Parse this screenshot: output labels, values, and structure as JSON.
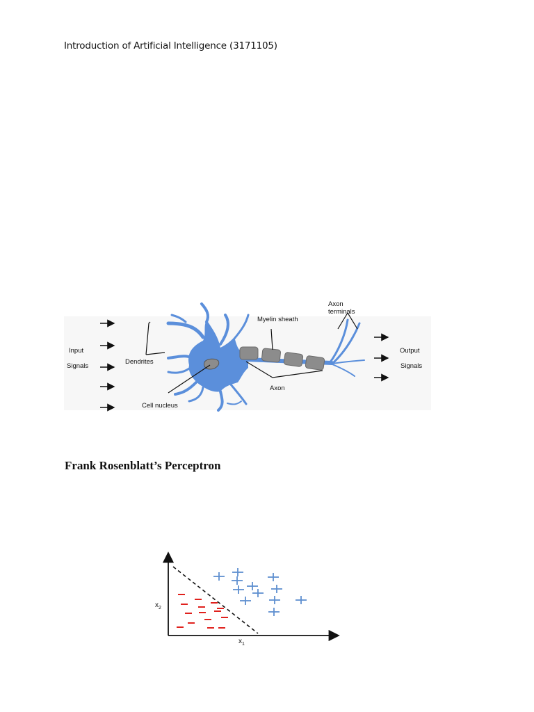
{
  "header": {
    "text": "Introduction of Artificial Intelligence (3171105)"
  },
  "neuron_diagram": {
    "labels": {
      "input": "Input",
      "input_signals": "Signals",
      "dendrites": "Dendrites",
      "cell_nucleus": "Cell nucleus",
      "myelin_sheath": "Myelin sheath",
      "axon": "Axon",
      "axon_terminals_1": "Axon",
      "axon_terminals_2": "terminals",
      "output": "Output",
      "output_signals": "Signals"
    },
    "colors": {
      "neuron": "#5b8fdb",
      "myelin": "#8c8c8c",
      "arrow": "#111111"
    }
  },
  "section": {
    "heading": "Frank Rosenblatt’s Perceptron"
  },
  "perceptron_plot": {
    "x_label": "x",
    "x_subscript": "1",
    "y_label": "x",
    "y_subscript": "2",
    "negative_symbol": "–",
    "positive_symbol": "+",
    "colors": {
      "negative": "#e0211d",
      "positive": "#5e8fd0",
      "axes": "#111111",
      "boundary": "#111111"
    }
  }
}
